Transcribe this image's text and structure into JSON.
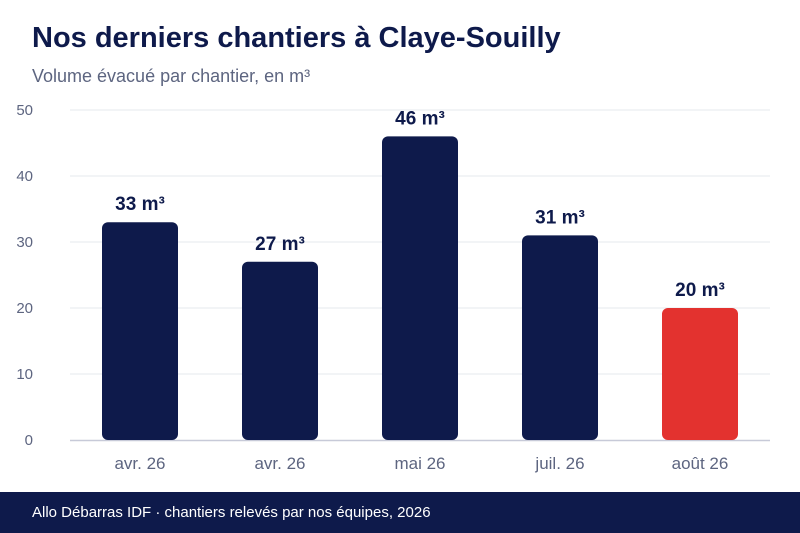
{
  "title": "Nos derniers chantiers à Claye-Souilly",
  "subtitle": "Volume évacué par chantier, en m³",
  "footer": "Allo Débarras IDF · chantiers relevés par nos équipes, 2026",
  "colors": {
    "bar": "#0e1a4b",
    "highlight": "#e3322f",
    "grid": "#e6e8ee",
    "axis": "#c7cad8",
    "tick": "#5d6580",
    "label": "#0e1a4b"
  },
  "chart_data": {
    "type": "bar",
    "categories": [
      "avr. 26",
      "avr. 26",
      "mai 26",
      "juil. 26",
      "août 26"
    ],
    "values": [
      33,
      27,
      46,
      31,
      20
    ],
    "data_labels": [
      "33 m³",
      "27 m³",
      "46 m³",
      "31 m³",
      "20 m³"
    ],
    "highlight_index": 4,
    "xlabel": "",
    "ylabel": "",
    "ylim": [
      0,
      50
    ],
    "yticks": [
      0,
      10,
      20,
      30,
      40,
      50
    ],
    "grid": true,
    "legend": "none"
  }
}
